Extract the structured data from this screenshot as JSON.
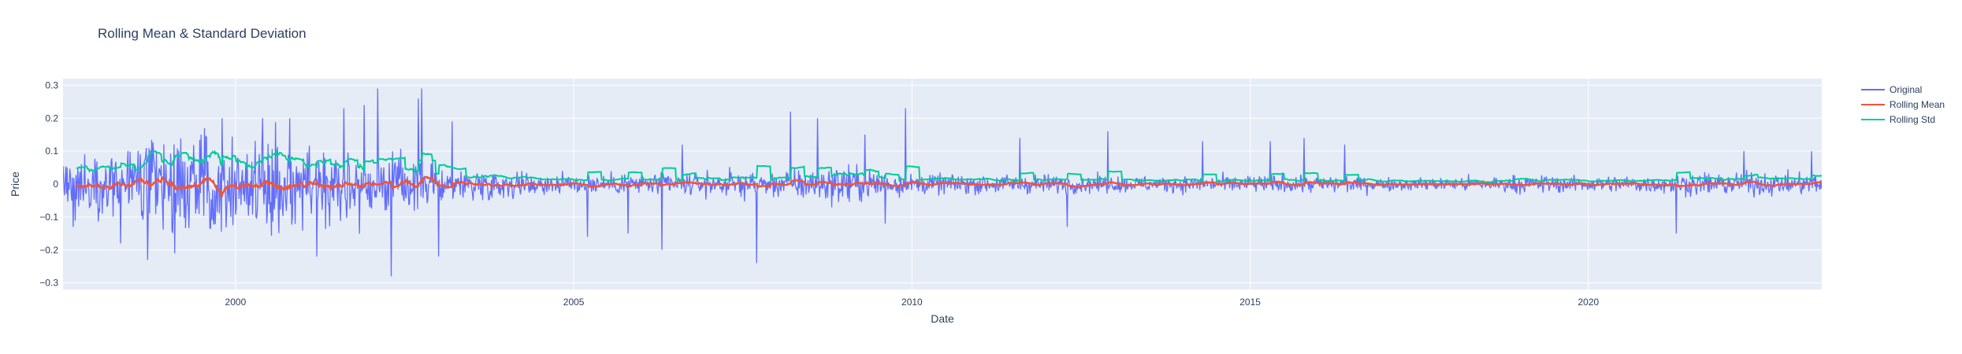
{
  "chart_data": {
    "type": "line",
    "title": "Rolling Mean & Standard Deviation",
    "xlabel": "Date",
    "ylabel": "Price",
    "x_range": [
      1997.45,
      2023.45
    ],
    "x_ticks": [
      2000,
      2005,
      2010,
      2015,
      2020
    ],
    "ylim": [
      -0.32,
      0.32
    ],
    "y_ticks": [
      -0.3,
      -0.2,
      -0.1,
      0,
      0.1,
      0.2,
      0.3
    ],
    "grid": true,
    "legend_position": "top-right",
    "plot_background": "#e5ecf6",
    "series": [
      {
        "name": "Original",
        "color": "#636efa"
      },
      {
        "name": "Rolling Mean",
        "color": "#ef553b"
      },
      {
        "name": "Rolling Std",
        "color": "#00cc96"
      }
    ],
    "volatility_profile": [
      [
        1997.45,
        0.045
      ],
      [
        1998.0,
        0.05
      ],
      [
        1999.0,
        0.07
      ],
      [
        2000.0,
        0.065
      ],
      [
        2001.0,
        0.07
      ],
      [
        2002.0,
        0.055
      ],
      [
        2003.0,
        0.025
      ],
      [
        2004.0,
        0.02
      ],
      [
        2005.0,
        0.015
      ],
      [
        2007.0,
        0.017
      ],
      [
        2008.0,
        0.02
      ],
      [
        2009.0,
        0.03
      ],
      [
        2010.0,
        0.015
      ],
      [
        2012.0,
        0.014
      ],
      [
        2014.0,
        0.012
      ],
      [
        2016.0,
        0.014
      ],
      [
        2017.5,
        0.009
      ],
      [
        2019.0,
        0.013
      ],
      [
        2020.5,
        0.012
      ],
      [
        2022.0,
        0.018
      ],
      [
        2023.45,
        0.015
      ]
    ],
    "spikes": [
      [
        1997.6,
        -0.13
      ],
      [
        1998.3,
        -0.18
      ],
      [
        1998.7,
        -0.23
      ],
      [
        1999.1,
        -0.21
      ],
      [
        1999.8,
        0.2
      ],
      [
        2000.4,
        0.2
      ],
      [
        2000.8,
        0.2
      ],
      [
        2001.2,
        -0.22
      ],
      [
        2001.6,
        0.23
      ],
      [
        2001.9,
        0.24
      ],
      [
        2002.1,
        0.29
      ],
      [
        2002.3,
        -0.28
      ],
      [
        2002.7,
        0.26
      ],
      [
        2002.75,
        0.29
      ],
      [
        2003.0,
        -0.22
      ],
      [
        2003.2,
        0.19
      ],
      [
        2005.2,
        -0.16
      ],
      [
        2005.8,
        -0.15
      ],
      [
        2006.3,
        -0.2
      ],
      [
        2006.6,
        0.12
      ],
      [
        2007.7,
        -0.24
      ],
      [
        2008.2,
        0.22
      ],
      [
        2008.6,
        0.2
      ],
      [
        2009.3,
        0.15
      ],
      [
        2009.6,
        -0.12
      ],
      [
        2009.9,
        0.23
      ],
      [
        2011.6,
        0.14
      ],
      [
        2012.3,
        -0.13
      ],
      [
        2012.9,
        0.16
      ],
      [
        2014.3,
        0.13
      ],
      [
        2015.3,
        0.13
      ],
      [
        2015.8,
        0.14
      ],
      [
        2016.4,
        0.12
      ],
      [
        2021.3,
        -0.15
      ],
      [
        2022.3,
        0.1
      ],
      [
        2023.3,
        0.1
      ]
    ]
  }
}
